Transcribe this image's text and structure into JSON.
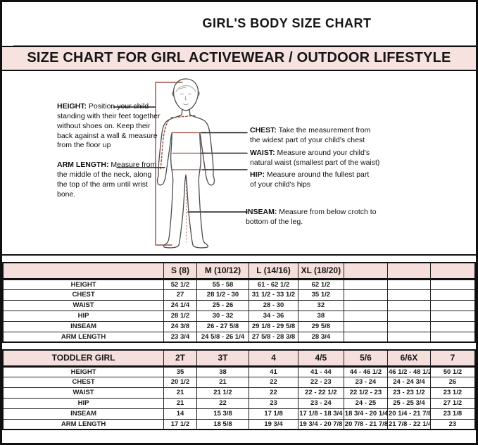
{
  "page": {
    "title": "GIRL'S BODY SIZE CHART",
    "banner": "SIZE CHART FOR GIRL ACTIVEWEAR / OUTDOOR LIFESTYLE"
  },
  "colors": {
    "banner_bg": "#f6e2df",
    "header_bg": "#f5dfdc",
    "measure_line": "#9c5041",
    "border_dark": "#101010"
  },
  "diagram": {
    "figure": "child-body-outline",
    "annotations_left": [
      {
        "label": "HEIGHT:",
        "text": " Position your child standing with their feet together without shoes on. Keep their back against a wall & measure from the floor up"
      },
      {
        "label": "ARM LENGTH:",
        "text": "  Measure from the middle of the neck, along the top of the arm until wrist bone."
      }
    ],
    "annotations_right": [
      {
        "label": "CHEST:",
        "text": " Take the measurement from the widest part of your child's chest"
      },
      {
        "label": "WAIST:",
        "text": " Measure around your child's natural waist (smallest part of the waist)"
      },
      {
        "label": "HIP:",
        "text": " Measure around the fullest part of your child's hips"
      },
      {
        "label": "INSEAM:",
        "text": " Measure from below crotch to bottom of the leg."
      }
    ]
  },
  "size_table": {
    "columns": [
      "",
      "S (8)",
      "M (10/12)",
      "L (14/16)",
      "XL (18/20)",
      "",
      "",
      ""
    ],
    "rows": [
      [
        "HEIGHT",
        "52 1/2",
        "55 - 58",
        "61 - 62 1/2",
        "62 1/2",
        "",
        "",
        ""
      ],
      [
        "CHEST",
        "27",
        "28 1/2 - 30",
        "31 1/2 - 33 1/2",
        "35 1/2",
        "",
        "",
        ""
      ],
      [
        "WAIST",
        "24 1/4",
        "25 - 26",
        "28 - 30",
        "32",
        "",
        "",
        ""
      ],
      [
        "HIP",
        "28 1/2",
        "30 - 32",
        "34 - 36",
        "38",
        "",
        "",
        ""
      ],
      [
        "INSEAM",
        "24 3/8",
        "26 - 27 5/8",
        "29 1/8 - 29 5/8",
        "29 5/8",
        "",
        "",
        ""
      ],
      [
        "ARM LENGTH",
        "23 3/4",
        "24 5/8 - 26 1/4",
        "27 5/8 - 28 3/8",
        "28 3/4",
        "",
        "",
        ""
      ]
    ]
  },
  "toddler_table": {
    "columns": [
      "TODDLER GIRL",
      "2T",
      "3T",
      "4",
      "4/5",
      "5/6",
      "6/6X",
      "7"
    ],
    "rows": [
      [
        "HEIGHT",
        "35",
        "38",
        "41",
        "41 - 44",
        "44 - 46 1/2",
        "46 1/2 - 48 1/2",
        "50 1/2"
      ],
      [
        "CHEST",
        "20 1/2",
        "21",
        "22",
        "22 - 23",
        "23 - 24",
        "24 - 24 3/4",
        "26"
      ],
      [
        "WAIST",
        "21",
        "21 1/2",
        "22",
        "22 - 22 1/2",
        "22 1/2 - 23",
        "23 - 23 1/2",
        "23 1/2"
      ],
      [
        "HIP",
        "21",
        "22",
        "23",
        "23 - 24",
        "24 - 25",
        "25 - 25 3/4",
        "27 1/2"
      ],
      [
        "INSEAM",
        "14",
        "15 3/8",
        "17 1/8",
        "17 1/8 - 18 3/4",
        "18 3/4 - 20 1/4",
        "20 1/4 - 21 7/8",
        "23 1/8"
      ],
      [
        "ARM LENGTH",
        "17 1/2",
        "18 5/8",
        "19 3/4",
        "19 3/4 - 20 7/8",
        "20 7/8 - 21 7/8",
        "21 7/8 - 22 1/4",
        "23"
      ]
    ]
  }
}
